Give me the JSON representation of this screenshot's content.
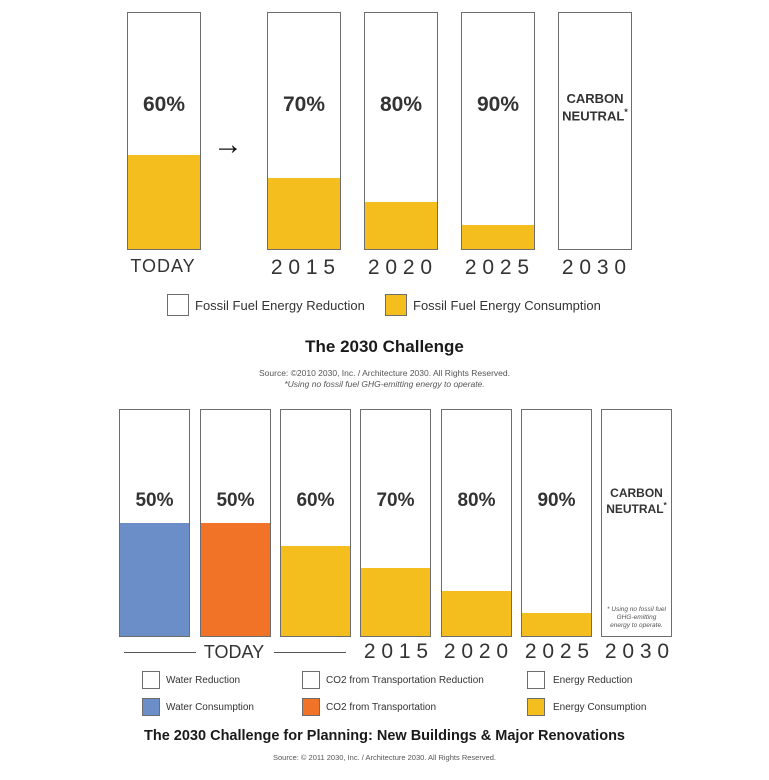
{
  "colors": {
    "energy": "#f4be1e",
    "water": "#6b8ec9",
    "co2": "#f07327"
  },
  "chart_data": [
    {
      "type": "bar",
      "title": "The 2030 Challenge",
      "categories": [
        "TODAY",
        "2015",
        "2020",
        "2025",
        "2030"
      ],
      "series": [
        {
          "name": "Fossil Fuel Energy Reduction",
          "values": [
            60,
            70,
            80,
            90,
            100
          ]
        },
        {
          "name": "Fossil Fuel Energy Consumption",
          "values": [
            40,
            30,
            20,
            10,
            0
          ]
        }
      ],
      "bar_labels": [
        "60%",
        "70%",
        "80%",
        "90%",
        "CARBON NEUTRAL*"
      ],
      "ylim": [
        0,
        100
      ],
      "legend": [
        "Fossil Fuel Energy Reduction",
        "Fossil Fuel Energy Consumption"
      ],
      "source": "Source: ©2010 2030, Inc. / Architecture 2030. All Rights Reserved.",
      "footnote": "*Using no fossil fuel GHG-emitting energy to operate."
    },
    {
      "type": "bar",
      "title": "The 2030 Challenge for Planning: New Buildings & Major Renovations",
      "categories": [
        "TODAY (Water)",
        "TODAY (CO2)",
        "TODAY (Energy)",
        "2015",
        "2020",
        "2025",
        "2030"
      ],
      "series": [
        {
          "name": "Water Consumption",
          "values": [
            50,
            null,
            null,
            null,
            null,
            null,
            null
          ]
        },
        {
          "name": "CO2 from Transportation",
          "values": [
            null,
            50,
            null,
            null,
            null,
            null,
            null
          ]
        },
        {
          "name": "Energy Consumption",
          "values": [
            null,
            null,
            40,
            30,
            20,
            10,
            0
          ]
        }
      ],
      "bar_labels": [
        "50%",
        "50%",
        "60%",
        "70%",
        "80%",
        "90%",
        "CARBON NEUTRAL*"
      ],
      "ylim": [
        0,
        100
      ],
      "legend": [
        "Water Reduction",
        "CO2 from Transportation Reduction",
        "Energy Reduction",
        "Water Consumption",
        "CO2 from Transportation",
        "Energy Consumption"
      ],
      "source": "Source: © 2011 2030, Inc. / Architecture 2030. All Rights Reserved.",
      "footnote": "* Using no fossil fuel GHG-emitting energy to operate."
    }
  ],
  "top": {
    "arrow": "→",
    "year_labels": [
      "TODAY",
      "2 0 1 5",
      "2 0 2 0",
      "2 0 2 5",
      "2 0 3 0"
    ],
    "carbon_line1": "CARBON",
    "carbon_line2": "NEUTRAL",
    "carbon_star": "*",
    "legend_reduction": "Fossil Fuel Energy Reduction",
    "legend_consumption": "Fossil Fuel Energy Consumption",
    "title": "The 2030 Challenge",
    "source": "Source: ©2010 2030, Inc. / Architecture 2030. All Rights Reserved.",
    "footnote": "*Using no fossil fuel GHG-emitting energy to operate."
  },
  "bottom": {
    "year_today": "TODAY",
    "year_labels": [
      "2 0 1 5",
      "2 0 2 0",
      "2 0 2 5",
      "2 0 3 0"
    ],
    "carbon_line1": "CARBON",
    "carbon_line2": "NEUTRAL",
    "carbon_star": "*",
    "inner_note": "* Using no fossil fuel GHG-emitting energy to operate.",
    "legend": {
      "water_reduction": "Water Reduction",
      "co2_reduction": "CO2 from Transportation Reduction",
      "energy_reduction": "Energy Reduction",
      "water_consumption": "Water Consumption",
      "co2_consumption": "CO2 from Transportation",
      "energy_consumption": "Energy Consumption"
    },
    "title": "The 2030 Challenge for Planning: New Buildings & Major Renovations",
    "source": "Source: © 2011 2030, Inc. / Architecture 2030. All Rights Reserved."
  }
}
